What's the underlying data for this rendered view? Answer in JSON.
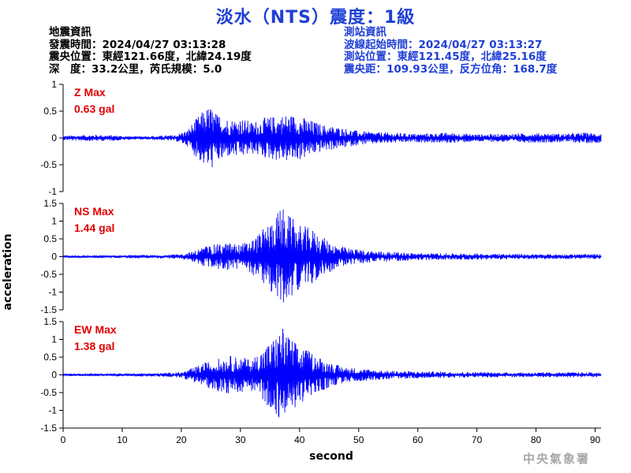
{
  "title": "淡水（NTS）震度：1級",
  "quake_info": {
    "heading": "地震資訊",
    "origin_time": "發震時間：2024/04/27 03:13:28",
    "epicenter": "震央位置：東經121.66度，北緯24.19度",
    "depth_magnitude": "深　度：33.2公里，芮氏規模：5.0"
  },
  "station_info": {
    "heading": "測站資訊",
    "wave_start": "波線起始時間：2024/04/27 03:13:27",
    "location": "測站位置：東經121.45度，北緯25.16度",
    "distance": "震央距：109.93公里，反方位角：168.7度"
  },
  "footer": "中央氣象署",
  "colors": {
    "trace": "#0000ff",
    "title": "#1f3fd6",
    "max_label": "#e00000"
  },
  "chart_data": [
    {
      "type": "line",
      "component": "Z",
      "max_label": "Z Max",
      "max_value": "0.63 gal",
      "ylim": [
        -1,
        1
      ],
      "yticks": [
        1,
        0.5,
        0,
        -0.5,
        -1
      ],
      "ytick_labels": [
        "1",
        "0.5",
        "0",
        "-0.5",
        "-1"
      ],
      "xlim": [
        0,
        91
      ],
      "envelope": {
        "t": [
          0,
          2,
          5,
          9,
          12,
          16,
          19,
          21,
          22,
          23,
          24,
          25,
          26,
          27,
          28,
          30,
          32,
          34,
          36,
          38,
          40,
          42,
          44,
          47,
          50,
          55,
          60,
          65,
          70,
          75,
          80,
          85,
          88,
          91
        ],
        "amp": [
          0.04,
          0.05,
          0.06,
          0.05,
          0.03,
          0.04,
          0.06,
          0.15,
          0.3,
          0.42,
          0.55,
          0.6,
          0.45,
          0.45,
          0.35,
          0.38,
          0.3,
          0.38,
          0.42,
          0.45,
          0.42,
          0.33,
          0.25,
          0.2,
          0.13,
          0.1,
          0.08,
          0.1,
          0.07,
          0.08,
          0.09,
          0.08,
          0.1,
          0.09
        ]
      }
    },
    {
      "type": "line",
      "component": "NS",
      "max_label": "NS Max",
      "max_value": "1.44 gal",
      "ylim": [
        -1.5,
        1.5
      ],
      "yticks": [
        1.5,
        1,
        0.5,
        0,
        -0.5,
        -1,
        -1.5
      ],
      "ytick_labels": [
        "1.5",
        "1",
        "0.5",
        "0",
        "-0.5",
        "-1",
        "-1.5"
      ],
      "xlim": [
        0,
        91
      ],
      "envelope": {
        "t": [
          0,
          8,
          16,
          20,
          22,
          24,
          26,
          28,
          30,
          32,
          34,
          36,
          37,
          38,
          40,
          42,
          44,
          46,
          48,
          50,
          55,
          60,
          65,
          70,
          75,
          80,
          85,
          91
        ],
        "amp": [
          0.03,
          0.04,
          0.05,
          0.07,
          0.15,
          0.3,
          0.35,
          0.4,
          0.35,
          0.5,
          0.8,
          1.2,
          1.44,
          1.2,
          0.9,
          0.8,
          0.55,
          0.35,
          0.25,
          0.2,
          0.14,
          0.1,
          0.09,
          0.09,
          0.08,
          0.07,
          0.07,
          0.07
        ]
      }
    },
    {
      "type": "line",
      "component": "EW",
      "max_label": "EW Max",
      "max_value": "1.38 gal",
      "ylim": [
        -1.5,
        1.5
      ],
      "yticks": [
        1.5,
        1,
        0.5,
        0,
        -0.5,
        -1,
        -1.5
      ],
      "ytick_labels": [
        "1.5",
        "1",
        "0.5",
        "0",
        "-0.5",
        "-1",
        "-1.5"
      ],
      "xlim": [
        0,
        91
      ],
      "xticks": [
        0,
        10,
        20,
        30,
        40,
        50,
        60,
        70,
        80,
        90
      ],
      "xtick_labels": [
        "0",
        "10",
        "20",
        "30",
        "40",
        "50",
        "60",
        "70",
        "80",
        "90"
      ],
      "xlabel": "second",
      "envelope": {
        "t": [
          0,
          8,
          16,
          20,
          22,
          24,
          26,
          28,
          30,
          32,
          34,
          36,
          37,
          38,
          40,
          42,
          44,
          46,
          48,
          50,
          55,
          60,
          65,
          70,
          75,
          80,
          85,
          91
        ],
        "amp": [
          0.03,
          0.04,
          0.05,
          0.08,
          0.2,
          0.35,
          0.45,
          0.55,
          0.5,
          0.45,
          0.8,
          1.1,
          1.38,
          1.15,
          0.8,
          0.65,
          0.45,
          0.3,
          0.22,
          0.18,
          0.12,
          0.1,
          0.09,
          0.08,
          0.07,
          0.07,
          0.07,
          0.07
        ]
      }
    }
  ],
  "ylabel": "acceleration"
}
